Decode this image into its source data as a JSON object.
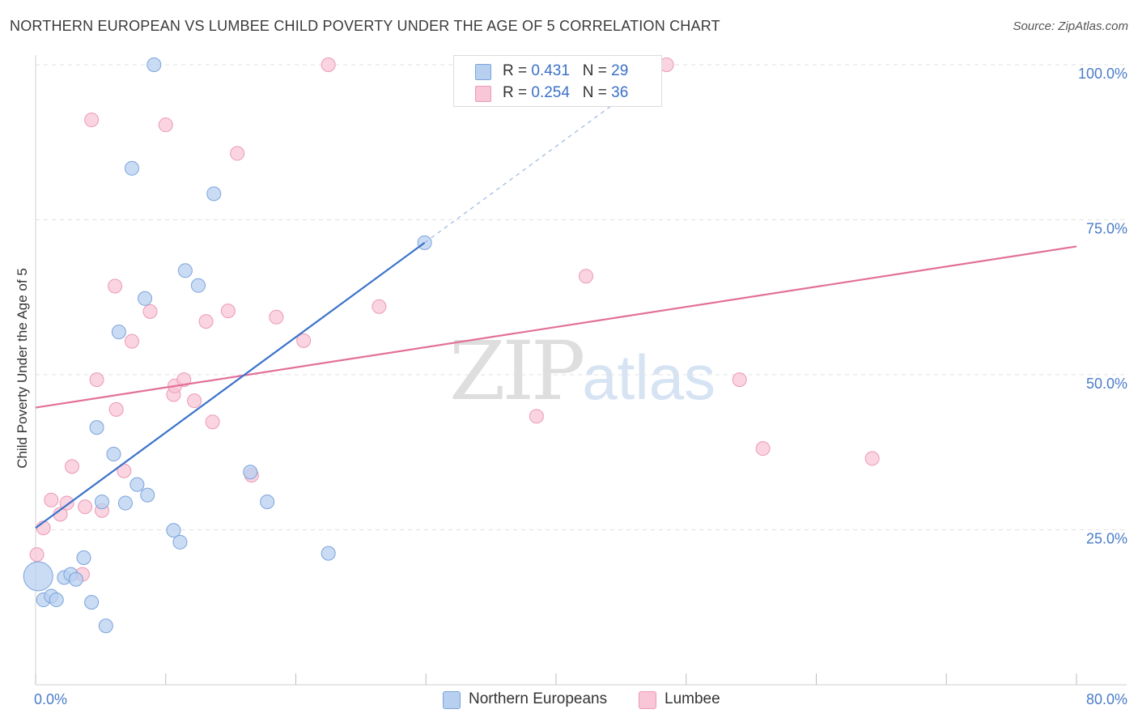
{
  "title": "NORTHERN EUROPEAN VS LUMBEE CHILD POVERTY UNDER THE AGE OF 5 CORRELATION CHART",
  "source": "Source: ZipAtlas.com",
  "watermark": {
    "zip": "ZIP",
    "atlas": "atlas"
  },
  "legend": {
    "r_label": "R =",
    "n_label": "N =",
    "rows": [
      {
        "r": "0.431",
        "n": "29"
      },
      {
        "r": "0.254",
        "n": "36"
      }
    ]
  },
  "colors": {
    "blue_fill": "#b8d0f0",
    "blue_stroke": "#7aa3dc",
    "blue_line": "#3a72cc",
    "pink_fill": "#f8c6d6",
    "pink_stroke": "#ec9ab6",
    "pink_line": "#e27098",
    "grid": "#e2e2e2",
    "tick_text": "#4a7cc9"
  },
  "chart_data": {
    "type": "scatter",
    "title": "NORTHERN EUROPEAN VS LUMBEE CHILD POVERTY UNDER THE AGE OF 5 CORRELATION CHART",
    "xlabel": "",
    "ylabel": "Child Poverty Under the Age of 5",
    "xlim": [
      0,
      80
    ],
    "ylim": [
      0,
      100
    ],
    "x_tick_labels": [
      {
        "v": 0,
        "label": "0.0%"
      },
      {
        "v": 80,
        "label": "80.0%"
      }
    ],
    "y_tick_labels": [
      {
        "v": 25,
        "label": "25.0%"
      },
      {
        "v": 50,
        "label": "50.0%"
      },
      {
        "v": 75,
        "label": "75.0%"
      },
      {
        "v": 100,
        "label": "100.0%"
      }
    ],
    "series": [
      {
        "name": "Northern Europeans",
        "r": 0.431,
        "n": 29,
        "trend": {
          "x0": 0,
          "y0": 25.3,
          "x1": 29.9,
          "y1": 71.3,
          "dash_to_x": 45.3
        },
        "points": [
          {
            "x": 0.2,
            "y": 17.5,
            "big": true
          },
          {
            "x": 0.6,
            "y": 13.7
          },
          {
            "x": 1.2,
            "y": 14.3
          },
          {
            "x": 1.6,
            "y": 13.7
          },
          {
            "x": 2.2,
            "y": 17.3
          },
          {
            "x": 2.7,
            "y": 17.8
          },
          {
            "x": 3.1,
            "y": 17.0
          },
          {
            "x": 3.7,
            "y": 20.5
          },
          {
            "x": 4.3,
            "y": 13.3
          },
          {
            "x": 4.7,
            "y": 41.5
          },
          {
            "x": 5.1,
            "y": 29.5
          },
          {
            "x": 5.4,
            "y": 9.5
          },
          {
            "x": 6.0,
            "y": 37.2
          },
          {
            "x": 6.4,
            "y": 56.9
          },
          {
            "x": 6.9,
            "y": 29.3
          },
          {
            "x": 7.4,
            "y": 83.3
          },
          {
            "x": 7.8,
            "y": 32.3
          },
          {
            "x": 8.4,
            "y": 62.3
          },
          {
            "x": 8.6,
            "y": 30.6
          },
          {
            "x": 9.1,
            "y": 100.0
          },
          {
            "x": 10.6,
            "y": 24.9
          },
          {
            "x": 11.1,
            "y": 23.0
          },
          {
            "x": 11.5,
            "y": 66.8
          },
          {
            "x": 12.5,
            "y": 64.4
          },
          {
            "x": 13.7,
            "y": 79.2
          },
          {
            "x": 16.5,
            "y": 34.3
          },
          {
            "x": 17.8,
            "y": 29.5
          },
          {
            "x": 22.5,
            "y": 21.2
          },
          {
            "x": 29.9,
            "y": 71.3
          }
        ]
      },
      {
        "name": "Lumbee",
        "r": 0.254,
        "n": 36,
        "trend": {
          "x0": 0,
          "y0": 44.7,
          "x1": 80,
          "y1": 70.7
        },
        "points": [
          {
            "x": 0.1,
            "y": 21.0
          },
          {
            "x": 0.6,
            "y": 25.3
          },
          {
            "x": 1.2,
            "y": 29.8
          },
          {
            "x": 1.9,
            "y": 27.5
          },
          {
            "x": 2.4,
            "y": 29.3
          },
          {
            "x": 2.8,
            "y": 35.2
          },
          {
            "x": 3.6,
            "y": 17.8
          },
          {
            "x": 3.8,
            "y": 28.7
          },
          {
            "x": 4.3,
            "y": 91.1
          },
          {
            "x": 4.7,
            "y": 49.2
          },
          {
            "x": 5.1,
            "y": 28.1
          },
          {
            "x": 6.1,
            "y": 64.3
          },
          {
            "x": 6.2,
            "y": 44.4
          },
          {
            "x": 6.8,
            "y": 34.5
          },
          {
            "x": 7.4,
            "y": 55.4
          },
          {
            "x": 8.8,
            "y": 60.2
          },
          {
            "x": 10.0,
            "y": 90.3
          },
          {
            "x": 10.6,
            "y": 46.8
          },
          {
            "x": 10.7,
            "y": 48.2
          },
          {
            "x": 11.4,
            "y": 49.2
          },
          {
            "x": 12.2,
            "y": 45.8
          },
          {
            "x": 13.1,
            "y": 58.6
          },
          {
            "x": 13.6,
            "y": 42.4
          },
          {
            "x": 14.8,
            "y": 60.3
          },
          {
            "x": 15.5,
            "y": 85.7
          },
          {
            "x": 16.6,
            "y": 33.8
          },
          {
            "x": 18.5,
            "y": 59.3
          },
          {
            "x": 20.6,
            "y": 55.5
          },
          {
            "x": 22.5,
            "y": 100.0
          },
          {
            "x": 26.4,
            "y": 61.0
          },
          {
            "x": 38.5,
            "y": 43.3
          },
          {
            "x": 42.3,
            "y": 65.9
          },
          {
            "x": 48.5,
            "y": 100.0
          },
          {
            "x": 54.1,
            "y": 49.2
          },
          {
            "x": 55.9,
            "y": 38.1
          },
          {
            "x": 64.3,
            "y": 36.5
          }
        ]
      }
    ]
  }
}
